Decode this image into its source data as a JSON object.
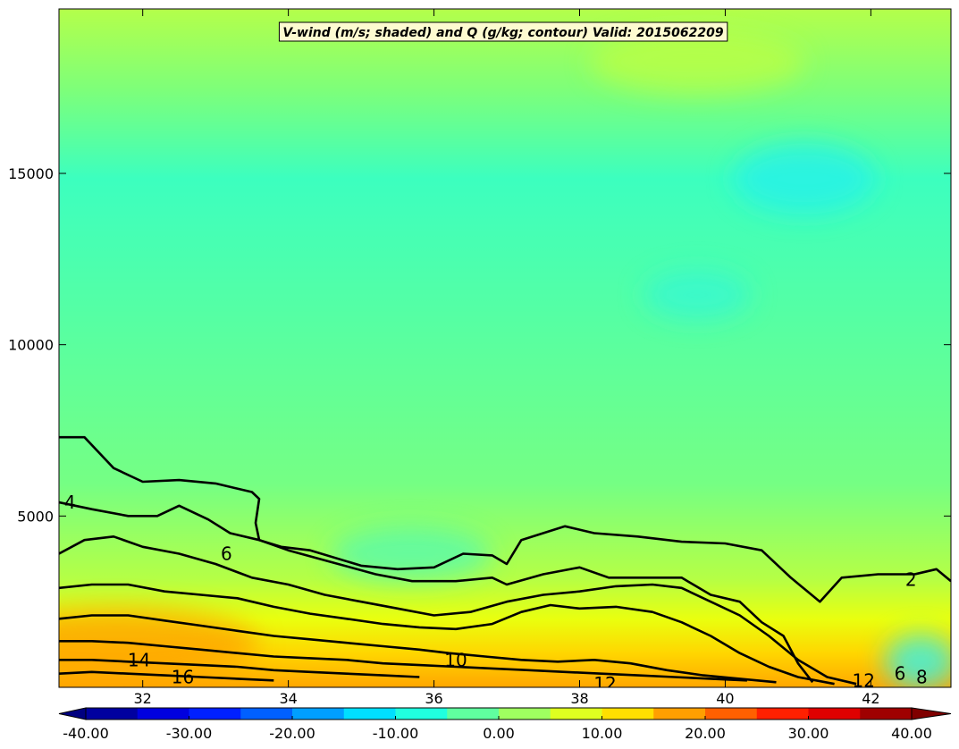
{
  "chart_data": {
    "type": "heatmap",
    "title": "V-wind (m/s; shaded) and Q (g/kg; contour) Valid: 2015062209",
    "x_ticks": [
      "32",
      "34",
      "36",
      "38",
      "40",
      "42"
    ],
    "x_tick_values": [
      32,
      34,
      36,
      38,
      40,
      42
    ],
    "xlim": [
      30.85,
      43.1
    ],
    "y_ticks": [
      "5000",
      "10000",
      "15000"
    ],
    "y_tick_values": [
      5000,
      10000,
      15000
    ],
    "ylim": [
      0,
      19800
    ],
    "shaded_variable": "V-wind (m/s)",
    "contour_variable": "Q (g/kg)",
    "colorbar": {
      "min": -40,
      "max": 40,
      "step": 5,
      "tick_labels": [
        "-40.00",
        "-30.00",
        "-20.00",
        "-10.00",
        "0.00",
        "10.00",
        "20.00",
        "30.00",
        "40.00"
      ],
      "tick_values": [
        -40,
        -30,
        -20,
        -10,
        0,
        10,
        20,
        30,
        40
      ],
      "extend": "both",
      "colormap": "jet"
    },
    "background_wind_estimate": [
      {
        "altitude": 18000,
        "v": 2
      },
      {
        "altitude": 15000,
        "v": -3
      },
      {
        "altitude": 10000,
        "v": -2
      },
      {
        "altitude": 5000,
        "v": 0
      },
      {
        "altitude": 2000,
        "v": 12
      },
      {
        "altitude": 500,
        "v": 20
      }
    ],
    "contours": [
      {
        "label": "2",
        "level": 2,
        "points": [
          [
            30.85,
            7300
          ],
          [
            31.2,
            7300
          ],
          [
            31.6,
            6400
          ],
          [
            32.0,
            6000
          ],
          [
            32.5,
            6050
          ],
          [
            33.0,
            5950
          ],
          [
            33.5,
            5700
          ],
          [
            33.6,
            5500
          ],
          [
            33.55,
            4800
          ],
          [
            33.6,
            4300
          ],
          [
            33.9,
            4100
          ],
          [
            34.3,
            4000
          ],
          [
            35.0,
            3550
          ],
          [
            35.5,
            3450
          ],
          [
            36.0,
            3500
          ],
          [
            36.4,
            3900
          ],
          [
            36.8,
            3850
          ],
          [
            37.0,
            3600
          ],
          [
            37.2,
            4300
          ],
          [
            37.8,
            4700
          ],
          [
            38.2,
            4500
          ],
          [
            38.8,
            4400
          ],
          [
            39.4,
            4250
          ],
          [
            40.0,
            4200
          ],
          [
            40.5,
            4000
          ],
          [
            40.9,
            3200
          ],
          [
            41.3,
            2500
          ],
          [
            41.6,
            3200
          ],
          [
            42.1,
            3300
          ],
          [
            42.6,
            3300
          ],
          [
            42.9,
            3450
          ],
          [
            43.1,
            3100
          ]
        ]
      },
      {
        "label": "4",
        "level": 4,
        "points": [
          [
            30.85,
            5400
          ],
          [
            31.3,
            5200
          ],
          [
            31.8,
            5000
          ],
          [
            32.2,
            5000
          ],
          [
            32.5,
            5300
          ],
          [
            32.9,
            4900
          ],
          [
            33.2,
            4500
          ],
          [
            33.6,
            4300
          ],
          [
            34.0,
            4000
          ],
          [
            34.6,
            3650
          ],
          [
            35.2,
            3300
          ],
          [
            35.7,
            3100
          ],
          [
            36.3,
            3100
          ],
          [
            36.8,
            3200
          ],
          [
            37.0,
            3000
          ],
          [
            37.5,
            3300
          ],
          [
            38.0,
            3500
          ],
          [
            38.4,
            3200
          ],
          [
            38.9,
            3200
          ],
          [
            39.4,
            3200
          ],
          [
            39.8,
            2700
          ],
          [
            40.2,
            2500
          ],
          [
            40.5,
            1900
          ],
          [
            40.8,
            1500
          ],
          [
            41.0,
            700
          ],
          [
            41.2,
            150
          ]
        ]
      },
      {
        "label": "6",
        "level": 6,
        "points": [
          [
            30.85,
            3900
          ],
          [
            31.2,
            4300
          ],
          [
            31.6,
            4400
          ],
          [
            32.0,
            4100
          ],
          [
            32.5,
            3900
          ],
          [
            33.0,
            3600
          ],
          [
            33.5,
            3200
          ],
          [
            34.0,
            3000
          ],
          [
            34.5,
            2700
          ],
          [
            35.0,
            2500
          ],
          [
            35.5,
            2300
          ],
          [
            36.0,
            2100
          ],
          [
            36.5,
            2200
          ],
          [
            37.0,
            2500
          ],
          [
            37.5,
            2700
          ],
          [
            38.0,
            2800
          ],
          [
            38.5,
            2950
          ],
          [
            39.0,
            3000
          ],
          [
            39.4,
            2900
          ],
          [
            39.8,
            2500
          ],
          [
            40.2,
            2100
          ],
          [
            40.6,
            1500
          ],
          [
            41.0,
            800
          ],
          [
            41.4,
            300
          ],
          [
            41.8,
            100
          ]
        ]
      },
      {
        "label": "8",
        "level": 8,
        "points": [
          [
            30.85,
            2900
          ],
          [
            31.3,
            3000
          ],
          [
            31.8,
            3000
          ],
          [
            32.3,
            2800
          ],
          [
            32.8,
            2700
          ],
          [
            33.3,
            2600
          ],
          [
            33.8,
            2350
          ],
          [
            34.3,
            2150
          ],
          [
            34.8,
            2000
          ],
          [
            35.3,
            1850
          ],
          [
            35.8,
            1750
          ],
          [
            36.3,
            1700
          ],
          [
            36.8,
            1850
          ],
          [
            37.2,
            2200
          ],
          [
            37.6,
            2400
          ],
          [
            38.0,
            2300
          ],
          [
            38.5,
            2350
          ],
          [
            39.0,
            2200
          ],
          [
            39.4,
            1900
          ],
          [
            39.8,
            1500
          ],
          [
            40.2,
            1000
          ],
          [
            40.6,
            600
          ],
          [
            41.0,
            300
          ],
          [
            41.5,
            100
          ]
        ]
      },
      {
        "label": "10",
        "level": 10,
        "points": [
          [
            30.85,
            2000
          ],
          [
            31.3,
            2100
          ],
          [
            31.8,
            2100
          ],
          [
            32.3,
            1950
          ],
          [
            32.8,
            1800
          ],
          [
            33.3,
            1650
          ],
          [
            33.8,
            1500
          ],
          [
            34.3,
            1400
          ],
          [
            34.8,
            1300
          ],
          [
            35.3,
            1200
          ],
          [
            35.8,
            1100
          ],
          [
            36.2,
            1000
          ],
          [
            36.7,
            900
          ],
          [
            37.2,
            800
          ],
          [
            37.7,
            750
          ],
          [
            38.2,
            800
          ],
          [
            38.7,
            700
          ],
          [
            39.2,
            500
          ],
          [
            39.7,
            350
          ],
          [
            40.2,
            250
          ],
          [
            40.7,
            150
          ]
        ]
      },
      {
        "label": "12",
        "level": 12,
        "points": [
          [
            30.85,
            1350
          ],
          [
            31.3,
            1350
          ],
          [
            31.8,
            1300
          ],
          [
            32.3,
            1200
          ],
          [
            32.8,
            1100
          ],
          [
            33.3,
            1000
          ],
          [
            33.8,
            900
          ],
          [
            34.3,
            850
          ],
          [
            34.8,
            800
          ],
          [
            35.3,
            700
          ],
          [
            35.8,
            650
          ],
          [
            36.3,
            600
          ],
          [
            36.8,
            550
          ],
          [
            37.3,
            500
          ],
          [
            37.8,
            450
          ],
          [
            38.3,
            400
          ],
          [
            38.8,
            350
          ],
          [
            39.3,
            300
          ],
          [
            39.8,
            250
          ],
          [
            40.3,
            200
          ]
        ]
      },
      {
        "label": "14",
        "level": 14,
        "points": [
          [
            30.85,
            800
          ],
          [
            31.3,
            800
          ],
          [
            31.8,
            750
          ],
          [
            32.3,
            700
          ],
          [
            32.8,
            650
          ],
          [
            33.3,
            600
          ],
          [
            33.8,
            500
          ],
          [
            34.3,
            450
          ],
          [
            34.8,
            400
          ],
          [
            35.3,
            350
          ],
          [
            35.8,
            300
          ]
        ]
      },
      {
        "label": "16",
        "level": 16,
        "points": [
          [
            30.85,
            400
          ],
          [
            31.3,
            450
          ],
          [
            31.8,
            400
          ],
          [
            32.3,
            350
          ],
          [
            32.8,
            300
          ],
          [
            33.3,
            250
          ],
          [
            33.8,
            200
          ]
        ]
      }
    ],
    "contour_labels": [
      {
        "text": "4",
        "x": 31.0,
        "y": 5400
      },
      {
        "text": "6",
        "x": 33.15,
        "y": 3900
      },
      {
        "text": "2",
        "x": 42.55,
        "y": 3150
      },
      {
        "text": "10",
        "x": 36.3,
        "y": 800
      },
      {
        "text": "12",
        "x": 38.35,
        "y": 100
      },
      {
        "text": "14",
        "x": 31.95,
        "y": 800
      },
      {
        "text": "16",
        "x": 32.55,
        "y": 300
      },
      {
        "text": "6",
        "x": 42.4,
        "y": 400
      },
      {
        "text": "8",
        "x": 42.7,
        "y": 300
      },
      {
        "text": "12",
        "x": 41.9,
        "y": 200
      }
    ],
    "grid": false,
    "legend": "colorbar-bottom"
  }
}
